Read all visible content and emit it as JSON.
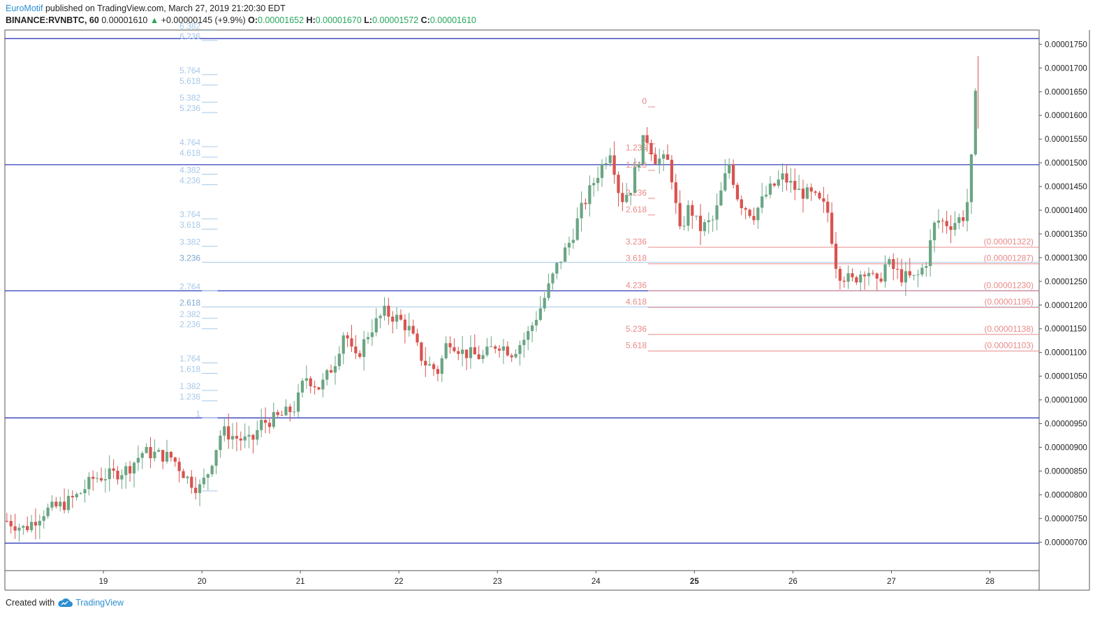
{
  "header": {
    "author": "EuroMotif",
    "published": "published on TradingView.com, March 27, 2019 21:20:30 EDT",
    "symbol": "BINANCE:RVNBTC, 60",
    "last": "0.00001610",
    "change": "+0.00000145 (+9.9%)",
    "o_label": "O:",
    "o_value": "0.00001652",
    "h_label": "H:",
    "h_value": "0.00001670",
    "l_label": "L:",
    "l_value": "0.00001572",
    "c_label": "C:",
    "c_value": "0.00001610"
  },
  "footer": {
    "created_with": "Created with",
    "brand": "TradingView"
  },
  "colors": {
    "up": "#6aa583",
    "down": "#d9534f",
    "hline": "#1f2bb3",
    "fib_left": "#a7c8e8",
    "fib_right": "#e88a88",
    "axis": "#333333"
  },
  "chart_data": {
    "type": "candlestick",
    "symbol": "RVNBTC",
    "exchange": "BINANCE",
    "interval": "60",
    "ylim": [
      6.4e-06,
      1.78e-05
    ],
    "y_ticks": [
      "0.00001750",
      "0.00001700",
      "0.00001650",
      "0.00001600",
      "0.00001550",
      "0.00001500",
      "0.00001450",
      "0.00001400",
      "0.00001350",
      "0.00001300",
      "0.00001250",
      "0.00001200",
      "0.00001150",
      "0.00001100",
      "0.00001050",
      "0.00001000",
      "0.00000950",
      "0.00000900",
      "0.00000850",
      "0.00000800",
      "0.00000750",
      "0.00000700"
    ],
    "x_ticks": [
      {
        "day": 18.0,
        "label": ""
      },
      {
        "day": 19,
        "label": "19"
      },
      {
        "day": 20,
        "label": "20"
      },
      {
        "day": 21,
        "label": "21"
      },
      {
        "day": 22,
        "label": "22"
      },
      {
        "day": 23,
        "label": "23"
      },
      {
        "day": 24,
        "label": "24"
      },
      {
        "day": 25,
        "label": "25",
        "bold": true
      },
      {
        "day": 26,
        "label": "26"
      },
      {
        "day": 27,
        "label": "27"
      },
      {
        "day": 28,
        "label": "28"
      }
    ],
    "horizontal_lines": [
      1.762e-05,
      1.496e-05,
      1.23e-05,
      9.62e-06,
      6.98e-06
    ],
    "fib_extension_left": {
      "from_day": 20.0,
      "to_day": 20.16,
      "levels": [
        {
          "label": "6.382",
          "price": 1.779e-05
        },
        {
          "label": "6.236",
          "price": 1.758e-05
        },
        {
          "label": "5.764",
          "price": 1.686e-05
        },
        {
          "label": "5.618",
          "price": 1.664e-05
        },
        {
          "label": "5.382",
          "price": 1.628e-05
        },
        {
          "label": "5.236",
          "price": 1.606e-05
        },
        {
          "label": "4.764",
          "price": 1.534e-05
        },
        {
          "label": "4.618",
          "price": 1.512e-05
        },
        {
          "label": "4.382",
          "price": 1.476e-05
        },
        {
          "label": "4.236",
          "price": 1.454e-05
        },
        {
          "label": "3.764",
          "price": 1.382e-05
        },
        {
          "label": "3.618",
          "price": 1.36e-05
        },
        {
          "label": "3.382",
          "price": 1.324e-05
        },
        {
          "label": "3.236",
          "price": 1.29e-05
        },
        {
          "label": "2.764",
          "price": 1.23e-05
        },
        {
          "label": "2.618",
          "price": 1.196e-05
        },
        {
          "label": "2.382",
          "price": 1.172e-05
        },
        {
          "label": "2.236",
          "price": 1.15e-05
        },
        {
          "label": "1.764",
          "price": 1.078e-05
        },
        {
          "label": "1.618",
          "price": 1.056e-05
        },
        {
          "label": "1.382",
          "price": 1.02e-05
        },
        {
          "label": "1.236",
          "price": 9.98e-06
        },
        {
          "label": "1",
          "price": 9.62e-06
        },
        {
          "label": "",
          "price": 8.08e-06
        }
      ],
      "extended_levels": [
        "3.236",
        "2.618"
      ]
    },
    "fib_extension_right": {
      "from_day": 24.53,
      "to_day": 24.6,
      "levels": [
        {
          "label": "0",
          "price": 1.618e-05
        },
        {
          "label": "1",
          "price": 1.54e-05
        },
        {
          "label": "1.236",
          "price": 1.52e-05
        },
        {
          "label": "1.618",
          "price": 1.484e-05
        },
        {
          "label": "2.236",
          "price": 1.425e-05
        },
        {
          "label": "2.618",
          "price": 1.39e-05
        },
        {
          "label": "3.236",
          "price": 1.322e-05,
          "price_label": "(0.00001322)"
        },
        {
          "label": "3.618",
          "price": 1.287e-05,
          "price_label": "(0.00001287)"
        },
        {
          "label": "4.236",
          "price": 1.23e-05,
          "price_label": "(0.00001230)"
        },
        {
          "label": "4.618",
          "price": 1.195e-05,
          "price_label": "(0.00001195)"
        },
        {
          "label": "5.236",
          "price": 1.138e-05,
          "price_label": "(0.00001138)"
        },
        {
          "label": "5.618",
          "price": 1.103e-05,
          "price_label": "(0.00001103)"
        }
      ]
    },
    "close_anchors": [
      [
        18.02,
        7.45e-06
      ],
      [
        18.2,
        7.28e-06
      ],
      [
        18.4,
        7.65e-06
      ],
      [
        18.6,
        7.8e-06
      ],
      [
        18.75,
        8e-06
      ],
      [
        18.9,
        8.35e-06
      ],
      [
        19.1,
        8.43e-06
      ],
      [
        19.25,
        8.55e-06
      ],
      [
        19.4,
        8.9e-06
      ],
      [
        19.55,
        8.85e-06
      ],
      [
        19.7,
        8.78e-06
      ],
      [
        19.85,
        8.35e-06
      ],
      [
        19.97,
        8.12e-06
      ],
      [
        20.05,
        8.4e-06
      ],
      [
        20.2,
        9.35e-06
      ],
      [
        20.35,
        9.2e-06
      ],
      [
        20.5,
        9.1e-06
      ],
      [
        20.6,
        9.5e-06
      ],
      [
        20.8,
        9.65e-06
      ],
      [
        20.95,
        9.85e-06
      ],
      [
        21.05,
        1.05e-05
      ],
      [
        21.2,
        1.025e-05
      ],
      [
        21.35,
        1.08e-05
      ],
      [
        21.45,
        1.15e-05
      ],
      [
        21.55,
        1.08e-05
      ],
      [
        21.7,
        1.145e-05
      ],
      [
        21.85,
        1.185e-05
      ],
      [
        22.0,
        1.17e-05
      ],
      [
        22.1,
        1.15e-05
      ],
      [
        22.25,
        1.08e-05
      ],
      [
        22.4,
        1.06e-05
      ],
      [
        22.5,
        1.13e-05
      ],
      [
        22.65,
        1.1e-05
      ],
      [
        22.85,
        1.09e-05
      ],
      [
        23.0,
        1.12e-05
      ],
      [
        23.15,
        1.1e-05
      ],
      [
        23.3,
        1.135e-05
      ],
      [
        23.45,
        1.2e-05
      ],
      [
        23.6,
        1.28e-05
      ],
      [
        23.75,
        1.34e-05
      ],
      [
        23.85,
        1.4e-05
      ],
      [
        24.0,
        1.47e-05
      ],
      [
        24.15,
        1.53e-05
      ],
      [
        24.25,
        1.42e-05
      ],
      [
        24.35,
        1.445e-05
      ],
      [
        24.5,
        1.56e-05
      ],
      [
        24.6,
        1.51e-05
      ],
      [
        24.75,
        1.5e-05
      ],
      [
        24.85,
        1.35e-05
      ],
      [
        24.95,
        1.41e-05
      ],
      [
        25.05,
        1.36e-05
      ],
      [
        25.2,
        1.38e-05
      ],
      [
        25.35,
        1.5e-05
      ],
      [
        25.45,
        1.42e-05
      ],
      [
        25.6,
        1.39e-05
      ],
      [
        25.75,
        1.44e-05
      ],
      [
        25.9,
        1.47e-05
      ],
      [
        26.05,
        1.44e-05
      ],
      [
        26.2,
        1.43e-05
      ],
      [
        26.35,
        1.4e-05
      ],
      [
        26.45,
        1.27e-05
      ],
      [
        26.6,
        1.25e-05
      ],
      [
        26.75,
        1.28e-05
      ],
      [
        26.85,
        1.24e-05
      ],
      [
        26.95,
        1.29e-05
      ],
      [
        27.1,
        1.26e-05
      ],
      [
        27.25,
        1.255e-05
      ],
      [
        27.35,
        1.29e-05
      ],
      [
        27.45,
        1.38e-05
      ],
      [
        27.6,
        1.37e-05
      ],
      [
        27.75,
        1.39e-05
      ],
      [
        27.8,
        1.46e-05
      ],
      [
        27.85,
        1.652e-05
      ],
      [
        27.88,
        1.61e-05
      ]
    ]
  }
}
